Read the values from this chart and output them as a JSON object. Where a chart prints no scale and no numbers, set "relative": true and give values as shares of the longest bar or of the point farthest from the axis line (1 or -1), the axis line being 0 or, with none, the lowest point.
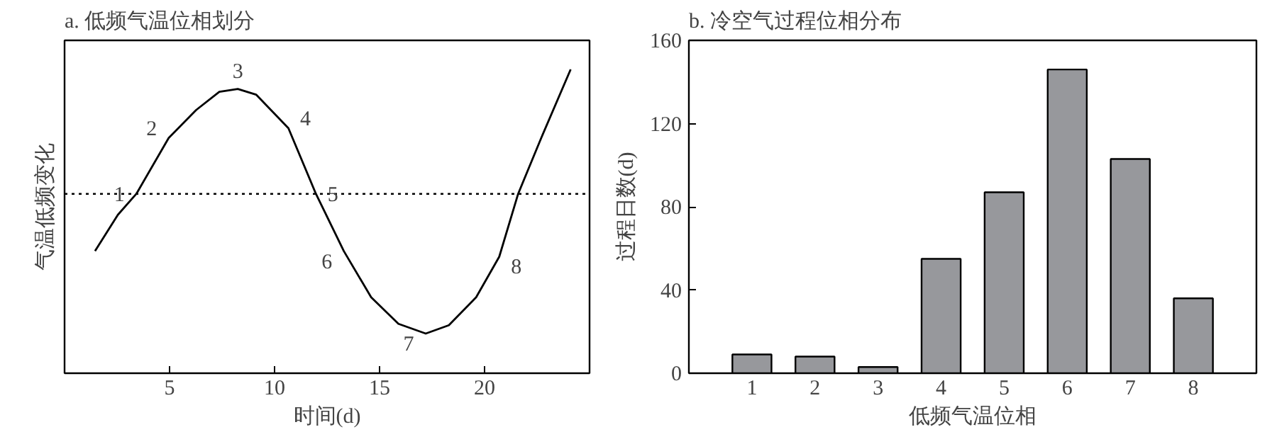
{
  "chart_data": [
    {
      "type": "line",
      "title": "a. 低频气温位相划分",
      "xlabel": "时间(d)",
      "ylabel": "气温低频变化",
      "relative": true,
      "xlim": [
        0,
        25
      ],
      "xticks": [
        5,
        10,
        15,
        20
      ],
      "tick_labels": "x",
      "grid": false,
      "line_style": "solid",
      "x": [
        1.45,
        2.54,
        3.42,
        4.96,
        6.27,
        7.37,
        8.25,
        9.12,
        10.66,
        11.97,
        13.3,
        14.6,
        15.9,
        17.2,
        18.3,
        19.6,
        20.7,
        21.6,
        22.7,
        24.1
      ],
      "series": [
        {
          "color": "#000000",
          "values": [
            -0.41,
            -0.15,
            0,
            0.4,
            0.6,
            0.73,
            0.75,
            0.71,
            0.47,
            0,
            -0.41,
            -0.74,
            -0.93,
            -1.0,
            -0.94,
            -0.74,
            -0.45,
            0,
            0.4,
            0.89
          ]
        }
      ],
      "ref_lines": [
        {
          "axis": "y",
          "value": 0,
          "line_style": "dotted",
          "color": "#000000"
        }
      ],
      "annotations": [
        {
          "text": "1",
          "x": 3.42,
          "y": 0
        },
        {
          "text": "2",
          "x": 4.96,
          "y": 0.4
        },
        {
          "text": "3",
          "x": 8.25,
          "y": 0.75
        },
        {
          "text": "4",
          "x": 10.66,
          "y": 0.47
        },
        {
          "text": "5",
          "x": 11.97,
          "y": 0
        },
        {
          "text": "6",
          "x": 13.3,
          "y": -0.41
        },
        {
          "text": "7",
          "x": 17.2,
          "y": -1.0
        },
        {
          "text": "8",
          "x": 20.7,
          "y": -0.45
        }
      ]
    },
    {
      "type": "bar",
      "title": "b. 冷空气过程位相分布",
      "xlabel": "低频气温位相",
      "ylabel": "过程日数(d)",
      "categories": [
        "1",
        "2",
        "3",
        "4",
        "5",
        "6",
        "7",
        "8"
      ],
      "series": [
        {
          "color": "#97989c",
          "values": [
            9,
            8,
            3,
            55,
            87,
            146,
            103,
            36
          ]
        }
      ],
      "ylim": [
        0,
        160
      ],
      "yticks": [
        0,
        40,
        80,
        120,
        160
      ],
      "grid": false
    }
  ]
}
